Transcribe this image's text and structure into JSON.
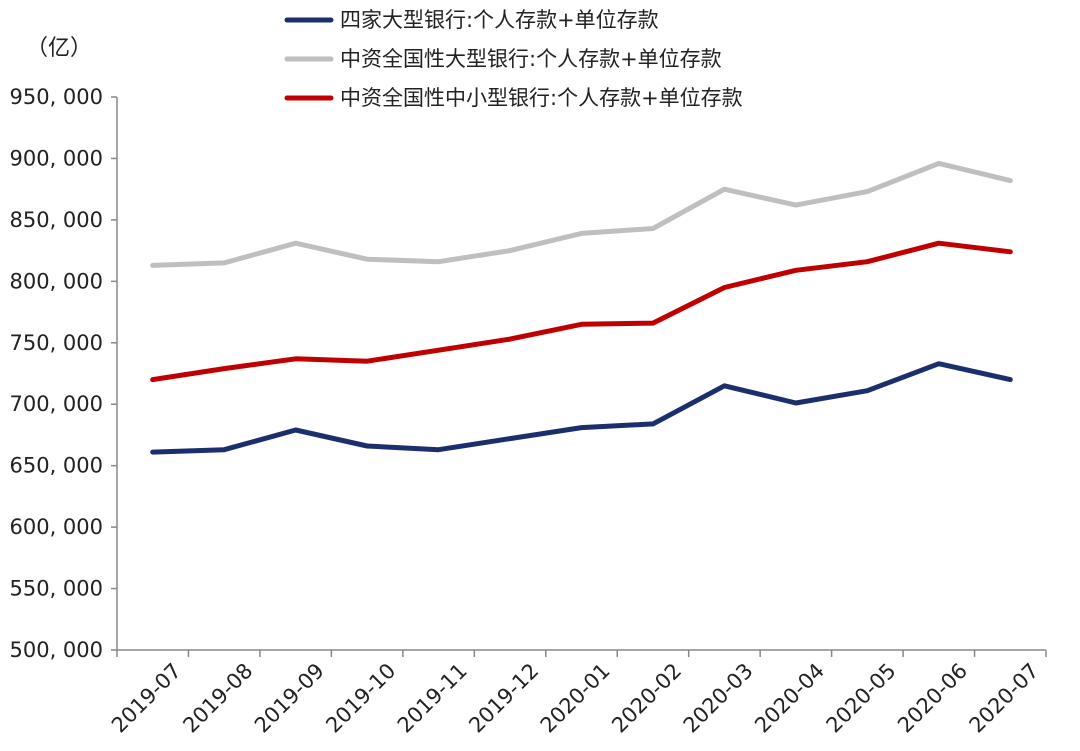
{
  "chart_data": {
    "type": "line",
    "unit_label": "（亿）",
    "categories": [
      "2019-07",
      "2019-08",
      "2019-09",
      "2019-10",
      "2019-11",
      "2019-12",
      "2020-01",
      "2020-02",
      "2020-03",
      "2020-04",
      "2020-05",
      "2020-06",
      "2020-07"
    ],
    "ylim": [
      500000,
      950000
    ],
    "yticks": [
      500000,
      550000,
      600000,
      650000,
      700000,
      750000,
      800000,
      850000,
      900000,
      950000
    ],
    "ytick_labels": [
      "500, 000",
      "550, 000",
      "600, 000",
      "650, 000",
      "700, 000",
      "750, 000",
      "800, 000",
      "850, 000",
      "900, 000",
      "950, 000"
    ],
    "grid": false,
    "legend_position": "top",
    "series": [
      {
        "name": "四家大型银行:个人存款+单位存款",
        "color": "#1b2f6e",
        "values": [
          661000,
          663000,
          679000,
          666000,
          663000,
          672000,
          681000,
          684000,
          715000,
          701000,
          711000,
          733000,
          720000
        ]
      },
      {
        "name": "中资全国性大型银行:个人存款+单位存款",
        "color": "#bfbfbf",
        "values": [
          813000,
          815000,
          831000,
          818000,
          816000,
          825000,
          839000,
          843000,
          875000,
          862000,
          873000,
          896000,
          882000
        ]
      },
      {
        "name": "中资全国性中小型银行:个人存款+单位存款",
        "color": "#c00000",
        "values": [
          720000,
          729000,
          737000,
          735000,
          744000,
          753000,
          765000,
          766000,
          795000,
          809000,
          816000,
          831000,
          824000
        ]
      }
    ]
  }
}
